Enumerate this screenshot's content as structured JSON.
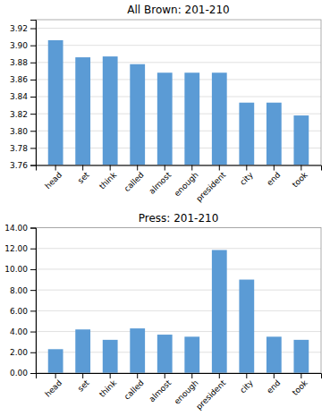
{
  "chart_data": [
    {
      "type": "bar",
      "title": "All Brown: 201-210",
      "categories": [
        "head",
        "set",
        "think",
        "called",
        "almost",
        "enough",
        "president",
        "city",
        "end",
        "took"
      ],
      "values": [
        3.906,
        3.886,
        3.887,
        3.878,
        3.868,
        3.868,
        3.868,
        3.833,
        3.833,
        3.818
      ],
      "color": "#5B9BD5",
      "ylim": [
        3.76,
        3.93
      ],
      "yticks": [
        3.76,
        3.78,
        {
          "value": 3.8,
          "label": "3.80"
        },
        3.82,
        3.84,
        3.86,
        3.88,
        {
          "value": 3.9,
          "label": "3.90"
        },
        3.92
      ],
      "grid": true
    },
    {
      "type": "bar",
      "title": "Press: 201-210",
      "categories": [
        "head",
        "set",
        "think",
        "called",
        "almost",
        "enough",
        "president",
        "city",
        "end",
        "took"
      ],
      "values": [
        2.3,
        4.2,
        3.2,
        4.3,
        3.7,
        3.5,
        11.85,
        9.0,
        3.5,
        3.2
      ],
      "color": "#5B9BD5",
      "ylim": [
        0,
        14.0
      ],
      "yticks": [
        {
          "value": 0.0,
          "label": "0.00"
        },
        {
          "value": 2.0,
          "label": "2.00"
        },
        {
          "value": 4.0,
          "label": "4.00"
        },
        {
          "value": 6.0,
          "label": "6.00"
        },
        {
          "value": 8.0,
          "label": "8.00"
        },
        {
          "value": 10.0,
          "label": "10.00"
        },
        {
          "value": 12.0,
          "label": "12.00"
        },
        {
          "value": 14.0,
          "label": "14.00"
        }
      ],
      "grid": true
    }
  ]
}
